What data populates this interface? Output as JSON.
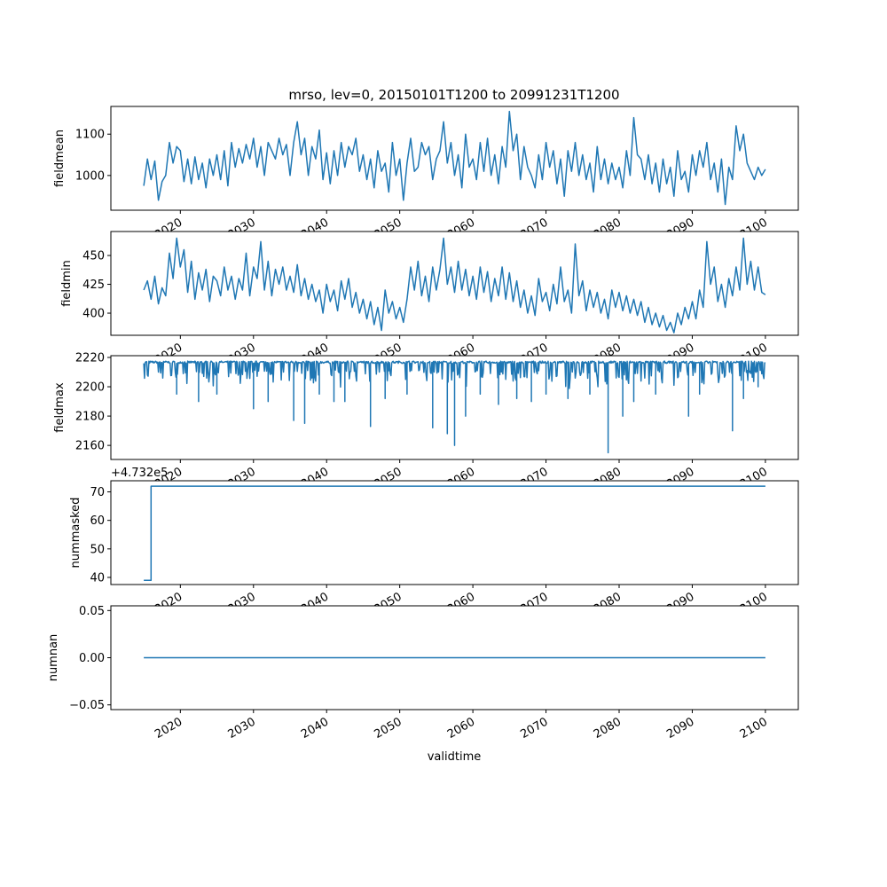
{
  "chart_data": {
    "type": "line",
    "title": "mrso, lev=0, 20150101T1200 to 20991231T1200",
    "xlabel": "validtime",
    "xlim": [
      2010.5,
      2104.5
    ],
    "x_ticks": [
      "2020",
      "2030",
      "2040",
      "2050",
      "2060",
      "2070",
      "2080",
      "2090",
      "2100"
    ],
    "x_tick_values": [
      2020,
      2030,
      2040,
      2050,
      2060,
      2070,
      2080,
      2090,
      2100
    ],
    "x_start": 2015.0,
    "x_step": 0.5,
    "grid": false,
    "color": "#1f77b4",
    "panels": [
      {
        "ylabel": "fieldmean",
        "ylim": [
          916,
          1167
        ],
        "y_ticks": [
          1000,
          1100
        ],
        "y_tick_labels": [
          "1000",
          "1100"
        ],
        "values": [
          975,
          1040,
          990,
          1035,
          940,
          985,
          1000,
          1080,
          1030,
          1070,
          1060,
          985,
          1040,
          980,
          1045,
          990,
          1030,
          970,
          1040,
          1000,
          1050,
          990,
          1060,
          975,
          1080,
          1020,
          1065,
          1030,
          1075,
          1040,
          1090,
          1020,
          1070,
          1000,
          1080,
          1060,
          1040,
          1090,
          1050,
          1075,
          1000,
          1080,
          1130,
          1050,
          1090,
          1000,
          1070,
          1040,
          1110,
          990,
          1055,
          980,
          1060,
          1000,
          1080,
          1020,
          1070,
          1050,
          1090,
          1010,
          1050,
          990,
          1040,
          970,
          1060,
          1010,
          1030,
          960,
          1080,
          1000,
          1040,
          940,
          1030,
          1090,
          1010,
          1020,
          1080,
          1050,
          1070,
          990,
          1040,
          1060,
          1130,
          1030,
          1080,
          1000,
          1050,
          970,
          1100,
          1020,
          1040,
          990,
          1080,
          1010,
          1090,
          1000,
          1050,
          980,
          1070,
          1020,
          1155,
          1060,
          1100,
          990,
          1070,
          1020,
          1000,
          970,
          1050,
          990,
          1080,
          1020,
          1060,
          980,
          1040,
          950,
          1060,
          1010,
          1080,
          1000,
          1050,
          990,
          1030,
          960,
          1070,
          990,
          1040,
          980,
          1030,
          990,
          1020,
          970,
          1060,
          1000,
          1140,
          1050,
          1040,
          990,
          1050,
          980,
          1030,
          960,
          1040,
          980,
          1020,
          950,
          1060,
          990,
          1010,
          960,
          1050,
          1000,
          1060,
          1020,
          1080,
          990,
          1030,
          960,
          1040,
          930,
          1020,
          990,
          1120,
          1060,
          1100,
          1030,
          1010,
          990,
          1020,
          1000,
          1015
        ]
      },
      {
        "ylabel": "fieldmin",
        "ylim": [
          380.8,
          470.8
        ],
        "y_ticks": [
          400,
          425,
          450
        ],
        "y_tick_labels": [
          "400",
          "425",
          "450"
        ],
        "values": [
          420,
          428,
          412,
          432,
          408,
          422,
          415,
          452,
          430,
          465,
          440,
          455,
          418,
          445,
          412,
          435,
          420,
          438,
          410,
          432,
          428,
          415,
          440,
          420,
          432,
          412,
          430,
          420,
          452,
          415,
          440,
          430,
          462,
          420,
          445,
          415,
          438,
          425,
          440,
          420,
          432,
          418,
          442,
          415,
          430,
          412,
          425,
          410,
          420,
          400,
          425,
          410,
          420,
          402,
          428,
          412,
          430,
          405,
          418,
          400,
          412,
          395,
          410,
          390,
          405,
          385,
          420,
          400,
          410,
          395,
          405,
          392,
          412,
          440,
          420,
          445,
          415,
          432,
          410,
          440,
          420,
          438,
          465,
          425,
          440,
          418,
          445,
          420,
          438,
          415,
          432,
          412,
          440,
          418,
          436,
          410,
          430,
          415,
          440,
          412,
          435,
          410,
          428,
          405,
          420,
          400,
          415,
          398,
          430,
          410,
          418,
          402,
          425,
          408,
          440,
          410,
          420,
          400,
          460,
          415,
          428,
          402,
          420,
          405,
          418,
          400,
          412,
          395,
          420,
          405,
          418,
          402,
          415,
          400,
          412,
          398,
          410,
          392,
          405,
          390,
          400,
          388,
          398,
          385,
          392,
          383,
          400,
          390,
          405,
          395,
          410,
          395,
          420,
          405,
          462,
          425,
          440,
          410,
          425,
          405,
          430,
          415,
          440,
          420,
          465,
          425,
          445,
          420,
          440,
          418,
          416
        ]
      },
      {
        "ylabel": "fieldmax",
        "ylim": [
          2150.4,
          2221.2
        ],
        "y_ticks": [
          2160,
          2180,
          2200,
          2220
        ],
        "y_tick_labels": [
          "2160",
          "2180",
          "2200",
          "2220"
        ],
        "baseline": 2216,
        "dips": [
          [
            2019.5,
            2195
          ],
          [
            2022.5,
            2190
          ],
          [
            2025,
            2195
          ],
          [
            2030,
            2185
          ],
          [
            2032,
            2190
          ],
          [
            2035.5,
            2177
          ],
          [
            2037,
            2175
          ],
          [
            2039,
            2195
          ],
          [
            2041,
            2190
          ],
          [
            2042.5,
            2190
          ],
          [
            2046,
            2173
          ],
          [
            2048,
            2192
          ],
          [
            2051,
            2195
          ],
          [
            2054.5,
            2172
          ],
          [
            2056.5,
            2168
          ],
          [
            2057.5,
            2160
          ],
          [
            2059,
            2180
          ],
          [
            2061,
            2195
          ],
          [
            2063.5,
            2188
          ],
          [
            2066,
            2192
          ],
          [
            2068,
            2190
          ],
          [
            2070,
            2195
          ],
          [
            2073,
            2192
          ],
          [
            2076,
            2195
          ],
          [
            2078.5,
            2155
          ],
          [
            2080.5,
            2180
          ],
          [
            2082,
            2190
          ],
          [
            2085,
            2195
          ],
          [
            2089.5,
            2180
          ],
          [
            2091,
            2195
          ],
          [
            2095.5,
            2170
          ],
          [
            2097,
            2192
          ],
          [
            2099,
            2200
          ]
        ]
      },
      {
        "ylabel": "nummasked",
        "offset_label": "+4.732e5",
        "ylim": [
          37.5,
          73.9
        ],
        "y_ticks": [
          40,
          50,
          60,
          70
        ],
        "y_tick_labels": [
          "40",
          "50",
          "60",
          "70"
        ],
        "steps": [
          [
            2015.0,
            39
          ],
          [
            2016.0,
            72
          ],
          [
            2100.0,
            72
          ]
        ]
      },
      {
        "ylabel": "numnan",
        "ylim": [
          -0.055,
          0.055
        ],
        "y_ticks": [
          -0.05,
          0,
          0.05
        ],
        "y_tick_labels": [
          "−0.05",
          "0.00",
          "0.05"
        ],
        "steps": [
          [
            2015.0,
            0
          ],
          [
            2100.0,
            0
          ]
        ]
      }
    ]
  }
}
